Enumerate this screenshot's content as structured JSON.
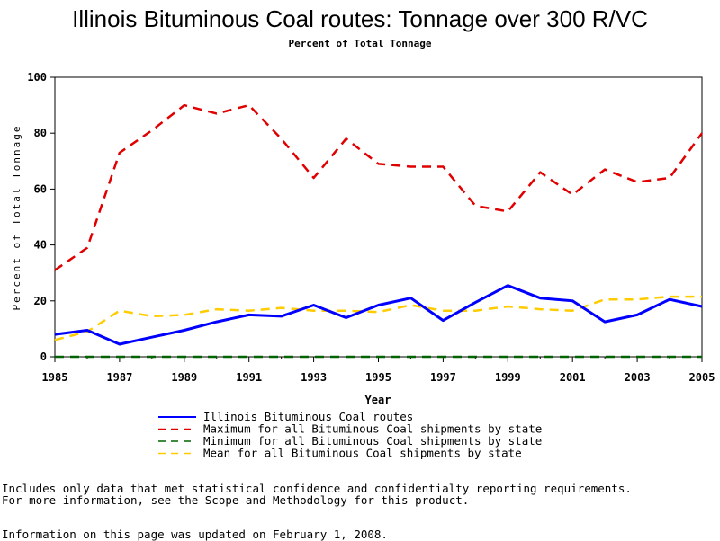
{
  "chart_data": {
    "type": "line",
    "title": "Illinois Bituminous Coal routes: Tonnage over 300 R/VC",
    "subtitle": "Percent of Total Tonnage",
    "xlabel": "Year",
    "ylabel": "Percent of Total Tonnage",
    "xlim": [
      1985,
      2005
    ],
    "ylim": [
      0,
      100
    ],
    "xticks": [
      1985,
      1987,
      1989,
      1991,
      1993,
      1995,
      1997,
      1999,
      2001,
      2003,
      2005
    ],
    "yticks": [
      0,
      20,
      40,
      60,
      80,
      100
    ],
    "grid": false,
    "legend_position": "bottom",
    "x": [
      1985,
      1986,
      1987,
      1988,
      1989,
      1990,
      1991,
      1992,
      1993,
      1994,
      1995,
      1996,
      1997,
      1998,
      1999,
      2000,
      2001,
      2002,
      2003,
      2004,
      2005
    ],
    "series": [
      {
        "name": "Illinois Bituminous Coal routes",
        "color": "#0000ff",
        "style": "solid",
        "values": [
          8,
          9.5,
          4.5,
          7,
          9.5,
          12.5,
          15,
          14.5,
          18.5,
          14,
          18.5,
          21,
          13,
          19.5,
          25.5,
          21,
          20,
          12.5,
          15,
          20.5,
          18
        ]
      },
      {
        "name": "Maximum for all Bituminous Coal shipments by state",
        "color": "#e00000",
        "style": "dashed",
        "values": [
          31,
          39,
          73,
          81,
          90,
          87,
          90,
          78,
          64,
          78,
          69,
          68,
          68,
          54,
          52,
          66,
          58,
          67,
          62.5,
          64,
          80
        ]
      },
      {
        "name": "Minimum for all Bituminous Coal shipments by state",
        "color": "#006400",
        "style": "dashed",
        "values": [
          0,
          0,
          0,
          0,
          0,
          0,
          0,
          0,
          0,
          0,
          0,
          0,
          0,
          0,
          0,
          0,
          0,
          0,
          0,
          0,
          0
        ]
      },
      {
        "name": "Mean for all Bituminous Coal shipments by state",
        "color": "#ffcc00",
        "style": "dashed",
        "values": [
          6,
          9,
          16.5,
          14.5,
          15,
          17,
          16.5,
          17.5,
          16.5,
          16.5,
          16,
          18.5,
          16.5,
          16.5,
          18,
          17,
          16.5,
          20.5,
          20.5,
          21.5,
          21.5
        ]
      }
    ]
  },
  "footnotes": {
    "line1": "Includes only data that met statistical confidence and confidentialty reporting requirements.",
    "line2": "For more information, see the Scope and Methodology for this product.",
    "updated": "Information on this page was updated on February 1, 2008."
  }
}
